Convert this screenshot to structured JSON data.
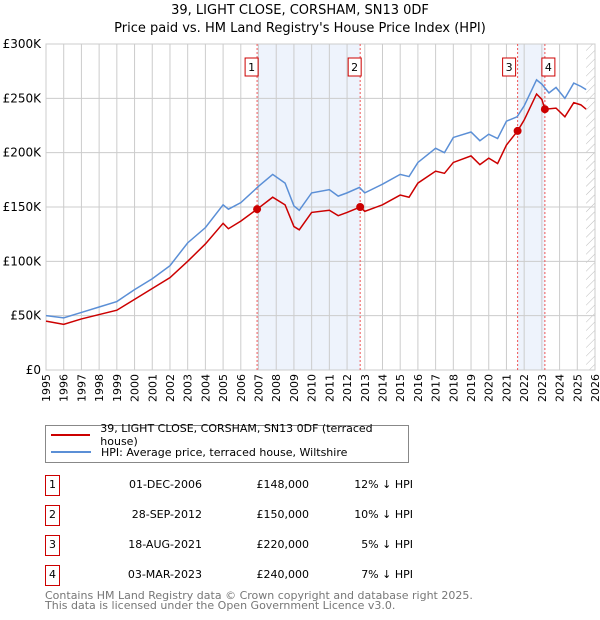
{
  "title": "39, LIGHT CLOSE, CORSHAM, SN13 0DF",
  "subtitle": "Price paid vs. HM Land Registry's House Price Index (HPI)",
  "chart_data": {
    "type": "line",
    "title": "39, LIGHT CLOSE, CORSHAM, SN13 0DF",
    "subtitle": "Price paid vs. HM Land Registry's House Price Index (HPI)",
    "xlim": [
      1995,
      2026
    ],
    "ylim": [
      0,
      300000
    ],
    "x_ticks": [
      "1995",
      "1996",
      "1997",
      "1998",
      "1999",
      "2000",
      "2001",
      "2002",
      "2003",
      "2004",
      "2005",
      "2006",
      "2007",
      "2008",
      "2009",
      "2010",
      "2011",
      "2012",
      "2013",
      "2014",
      "2015",
      "2016",
      "2017",
      "2018",
      "2019",
      "2020",
      "2021",
      "2022",
      "2023",
      "2024",
      "2025",
      "2026"
    ],
    "y_ticks": [
      {
        "v": 0,
        "label": "£0"
      },
      {
        "v": 50000,
        "label": "£50K"
      },
      {
        "v": 100000,
        "label": "£100K"
      },
      {
        "v": 150000,
        "label": "£150K"
      },
      {
        "v": 200000,
        "label": "£200K"
      },
      {
        "v": 250000,
        "label": "£250K"
      },
      {
        "v": 300000,
        "label": "£300K"
      }
    ],
    "grid": true,
    "shaded_periods": [
      [
        2006.92,
        2012.74
      ],
      [
        2021.63,
        2023.17
      ]
    ],
    "hatched_from": 2025.5,
    "series": [
      {
        "name": "39, LIGHT CLOSE, CORSHAM, SN13 0DF (terraced house)",
        "color": "#cc0000",
        "x": [
          1995,
          1996,
          1997,
          1998,
          1999,
          2000,
          2001,
          2002,
          2003,
          2004,
          2005,
          2005.3,
          2006,
          2006.92,
          2007.8,
          2008.5,
          2009,
          2009.3,
          2010,
          2011,
          2011.5,
          2012,
          2012.74,
          2013,
          2014,
          2015,
          2015.5,
          2016,
          2017,
          2017.5,
          2018,
          2019,
          2019.5,
          2020,
          2020.5,
          2021,
          2021.63,
          2022,
          2022.7,
          2023,
          2023.17,
          2023.8,
          2024.3,
          2024.8,
          2025.2,
          2025.5
        ],
        "y": [
          45000,
          42000,
          47000,
          51000,
          55000,
          65000,
          75000,
          85000,
          100000,
          116000,
          135000,
          130000,
          137000,
          148000,
          159000,
          152000,
          132000,
          129000,
          145000,
          147000,
          142000,
          145000,
          150000,
          146000,
          152000,
          161000,
          159000,
          172000,
          183000,
          181000,
          191000,
          197000,
          189000,
          195000,
          190000,
          207000,
          220000,
          230000,
          254000,
          249000,
          240000,
          241000,
          233000,
          246000,
          244000,
          240000
        ]
      },
      {
        "name": "HPI: Average price, terraced house, Wiltshire",
        "color": "#5b8fd6",
        "x": [
          1995,
          1996,
          1997,
          1998,
          1999,
          2000,
          2001,
          2002,
          2003,
          2004,
          2005,
          2005.3,
          2006,
          2007,
          2007.8,
          2008.5,
          2009,
          2009.3,
          2010,
          2011,
          2011.5,
          2012,
          2012.7,
          2013,
          2014,
          2015,
          2015.5,
          2016,
          2017,
          2017.5,
          2018,
          2019,
          2019.5,
          2020,
          2020.5,
          2021,
          2021.6,
          2022,
          2022.7,
          2023,
          2023.4,
          2023.8,
          2024.3,
          2024.8,
          2025.2,
          2025.5
        ],
        "y": [
          50000,
          48000,
          53000,
          58000,
          63000,
          74000,
          84000,
          96000,
          117000,
          131000,
          152000,
          148000,
          154000,
          169000,
          180000,
          172000,
          151000,
          147000,
          163000,
          166000,
          160000,
          163000,
          168000,
          163000,
          171000,
          180000,
          178000,
          191000,
          204000,
          200000,
          214000,
          219000,
          211000,
          217000,
          213000,
          229000,
          233000,
          243000,
          267000,
          263000,
          255000,
          260000,
          250000,
          264000,
          261000,
          258000
        ]
      }
    ],
    "sales": [
      {
        "n": "1",
        "x": 2006.92,
        "y": 148000
      },
      {
        "n": "2",
        "x": 2012.74,
        "y": 150000
      },
      {
        "n": "3",
        "x": 2021.63,
        "y": 220000
      },
      {
        "n": "4",
        "x": 2023.17,
        "y": 240000
      }
    ],
    "legend_position": "below"
  },
  "legend": [
    "39, LIGHT CLOSE, CORSHAM, SN13 0DF (terraced house)",
    "HPI: Average price, terraced house, Wiltshire"
  ],
  "colors": {
    "property": "#cc0000",
    "hpi": "#5b8fd6",
    "shade": "#eef3fc"
  },
  "transactions": [
    {
      "n": "1",
      "date": "01-DEC-2006",
      "price": "£148,000",
      "hpi": "12% ↓ HPI"
    },
    {
      "n": "2",
      "date": "28-SEP-2012",
      "price": "£150,000",
      "hpi": "10% ↓ HPI"
    },
    {
      "n": "3",
      "date": "18-AUG-2021",
      "price": "£220,000",
      "hpi": "5% ↓ HPI"
    },
    {
      "n": "4",
      "date": "03-MAR-2023",
      "price": "£240,000",
      "hpi": "7% ↓ HPI"
    }
  ],
  "footer": [
    "Contains HM Land Registry data © Crown copyright and database right 2025.",
    "This data is licensed under the Open Government Licence v3.0."
  ]
}
